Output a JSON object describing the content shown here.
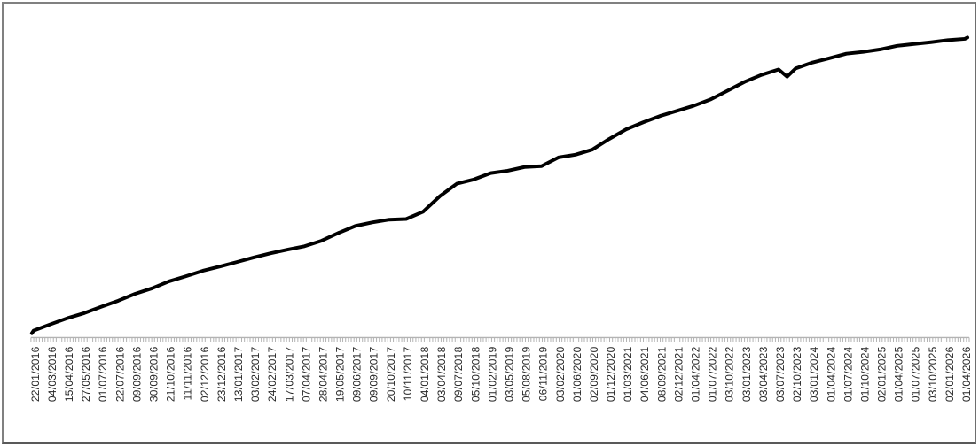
{
  "chart": {
    "background": "#ffffff",
    "border_color": "#808080",
    "line_color": "#000000",
    "line_width": 4,
    "axis_color": "#b3b3b3",
    "label_color": "#262626",
    "label_font_size": 12
  },
  "chart_data": {
    "type": "line",
    "title": "",
    "xlabel": "",
    "ylabel": "",
    "grid": false,
    "legend": "none",
    "y_axis_visible": false,
    "y_scale_note": "no y-axis labels in image; values are normalized 0-100 estimated from pixel height",
    "x_tick_labels": [
      "22/01/2016",
      "04/03/2016",
      "15/04/2016",
      "27/05/2016",
      "01/07/2016",
      "22/07/2016",
      "09/09/2016",
      "30/09/2016",
      "21/10/2016",
      "11/11/2016",
      "02/12/2016",
      "23/12/2016",
      "13/01/2017",
      "03/02/2017",
      "24/02/2017",
      "17/03/2017",
      "07/04/2017",
      "28/04/2017",
      "19/05/2017",
      "09/06/2017",
      "09/09/2017",
      "20/10/2017",
      "10/11/2017",
      "04/01/2018",
      "03/04/2018",
      "09/07/2018",
      "05/10/2018",
      "01/02/2019",
      "03/05/2019",
      "05/08/2019",
      "06/11/2019",
      "03/02/2020",
      "01/06/2020",
      "02/09/2020",
      "01/12/2020",
      "01/03/2021",
      "04/06/2021",
      "08/09/2021",
      "02/12/2021",
      "01/04/2022",
      "01/07/2022",
      "03/10/2022",
      "03/01/2023",
      "03/04/2023",
      "03/07/2023",
      "02/10/2023",
      "03/01/2024",
      "01/04/2024",
      "01/07/2024",
      "01/10/2024",
      "02/01/2025",
      "01/04/2025",
      "01/07/2025",
      "03/10/2025",
      "02/01/2026",
      "01/04/2026"
    ],
    "values": [
      2.3,
      4.4,
      6.4,
      8.1,
      10.2,
      12.2,
      14.5,
      16.3,
      18.6,
      20.3,
      22.1,
      23.5,
      25.0,
      26.5,
      27.9,
      29.1,
      30.2,
      32.0,
      34.6,
      36.9,
      38.1,
      39.0,
      39.2,
      41.6,
      46.8,
      50.9,
      52.3,
      54.4,
      55.2,
      56.4,
      56.7,
      59.6,
      60.5,
      62.2,
      65.7,
      68.9,
      71.2,
      73.3,
      75.0,
      76.7,
      78.8,
      81.7,
      84.6,
      86.9,
      88.7,
      89.0,
      91.0,
      92.4,
      93.9,
      94.5,
      95.3,
      96.5,
      97.1,
      97.7,
      98.4,
      98.8
    ],
    "dip": {
      "after_index": 44,
      "value": 86.3
    },
    "minor_tick_count": 335,
    "xlim_px_hint": "category axis, one minor tick per data point, label every 6th point"
  }
}
